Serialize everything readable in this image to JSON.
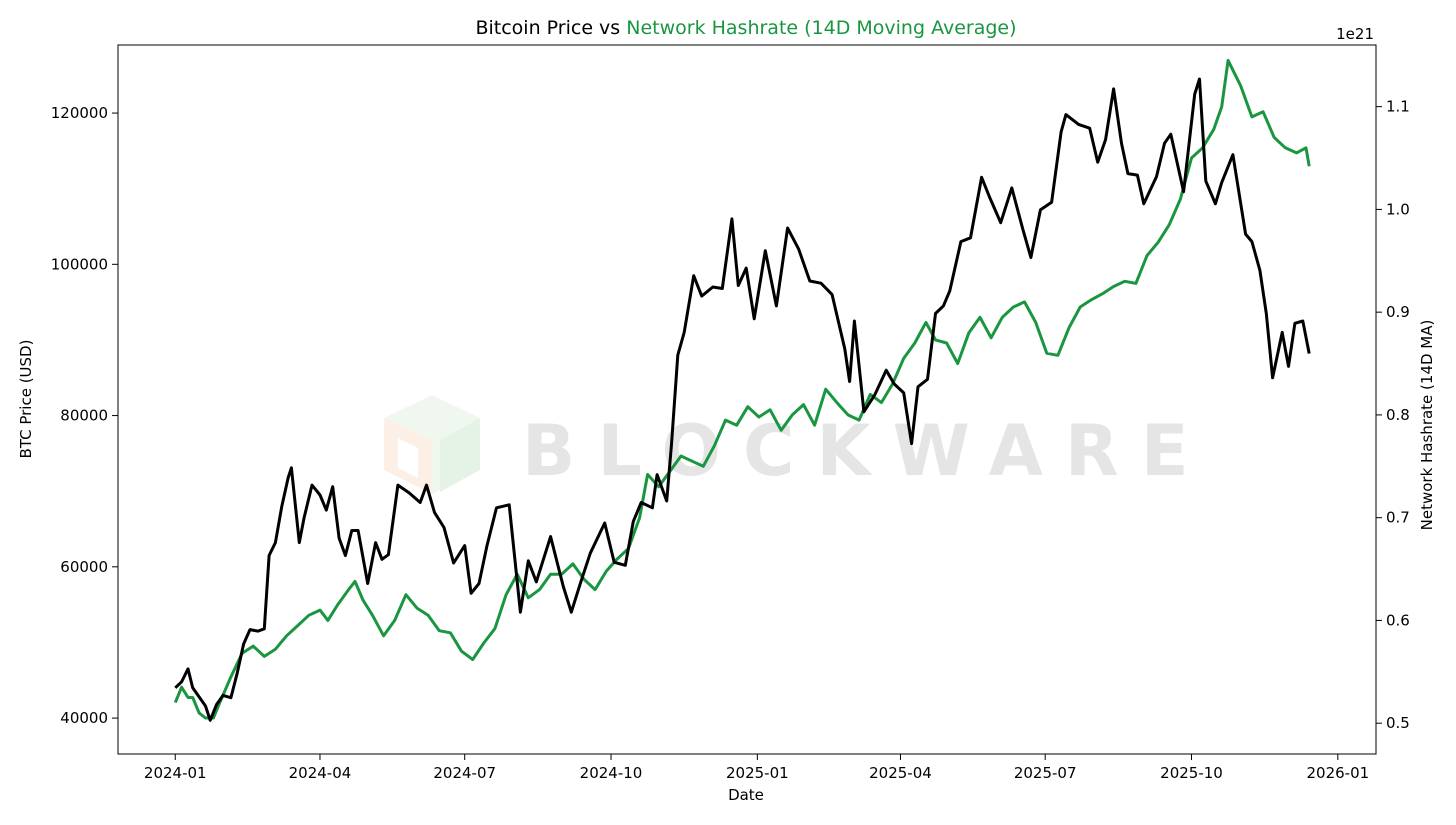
{
  "chart_data": {
    "type": "line",
    "title_part1": "Bitcoin Price vs ",
    "title_part2": "Network Hashrate (14D Moving Average)",
    "xlabel": "Date",
    "ylabel_left": "BTC Price (USD)",
    "ylabel_right": "Network Hashrate (14D MA)",
    "right_axis_offset_label": "1e21",
    "watermark": "BLOCKWARE",
    "colors": {
      "price": "#000000",
      "hashrate": "#1a9641",
      "title_accent": "#1a9641"
    },
    "xlim": [
      "2023-11-26",
      "2026-01-25"
    ],
    "ylim_left": [
      35250,
      129000
    ],
    "ylim_right": [
      0.47,
      1.16
    ],
    "x_ticks": [
      "2024-01",
      "2024-04",
      "2024-07",
      "2024-10",
      "2025-01",
      "2025-04",
      "2025-07",
      "2025-10",
      "2026-01"
    ],
    "y_ticks_left": [
      40000,
      60000,
      80000,
      100000,
      120000
    ],
    "y_ticks_right": [
      0.5,
      0.6,
      0.7,
      0.8,
      0.9,
      1.0,
      1.1
    ],
    "grid": false,
    "series": [
      {
        "axis": "left",
        "points": [
          [
            "2024-01-01",
            44000
          ],
          [
            "2024-01-05",
            44800
          ],
          [
            "2024-01-09",
            46500
          ],
          [
            "2024-01-12",
            44000
          ],
          [
            "2024-01-16",
            42800
          ],
          [
            "2024-01-20",
            41600
          ],
          [
            "2024-01-23",
            39700
          ],
          [
            "2024-01-27",
            41800
          ],
          [
            "2024-01-31",
            43000
          ],
          [
            "2024-02-05",
            42700
          ],
          [
            "2024-02-09",
            46000
          ],
          [
            "2024-02-13",
            49800
          ],
          [
            "2024-02-17",
            51700
          ],
          [
            "2024-02-22",
            51500
          ],
          [
            "2024-02-26",
            51800
          ],
          [
            "2024-02-29",
            61500
          ],
          [
            "2024-03-04",
            63200
          ],
          [
            "2024-03-08",
            68000
          ],
          [
            "2024-03-12",
            71800
          ],
          [
            "2024-03-14",
            73100
          ],
          [
            "2024-03-19",
            63200
          ],
          [
            "2024-03-22",
            66500
          ],
          [
            "2024-03-27",
            70800
          ],
          [
            "2024-04-01",
            69500
          ],
          [
            "2024-04-05",
            67500
          ],
          [
            "2024-04-09",
            70600
          ],
          [
            "2024-04-13",
            63800
          ],
          [
            "2024-04-17",
            61500
          ],
          [
            "2024-04-21",
            64800
          ],
          [
            "2024-04-25",
            64800
          ],
          [
            "2024-05-01",
            57800
          ],
          [
            "2024-05-06",
            63200
          ],
          [
            "2024-05-10",
            61000
          ],
          [
            "2024-05-14",
            61600
          ],
          [
            "2024-05-20",
            70800
          ],
          [
            "2024-05-27",
            69800
          ],
          [
            "2024-06-03",
            68500
          ],
          [
            "2024-06-07",
            70800
          ],
          [
            "2024-06-12",
            67200
          ],
          [
            "2024-06-18",
            65200
          ],
          [
            "2024-06-24",
            60500
          ],
          [
            "2024-07-01",
            62800
          ],
          [
            "2024-07-05",
            56500
          ],
          [
            "2024-07-10",
            57800
          ],
          [
            "2024-07-15",
            62800
          ],
          [
            "2024-07-21",
            67800
          ],
          [
            "2024-07-29",
            68200
          ],
          [
            "2024-08-05",
            54000
          ],
          [
            "2024-08-10",
            60800
          ],
          [
            "2024-08-15",
            58000
          ],
          [
            "2024-08-24",
            64000
          ],
          [
            "2024-09-01",
            57400
          ],
          [
            "2024-09-06",
            54000
          ],
          [
            "2024-09-12",
            58000
          ],
          [
            "2024-09-18",
            61800
          ],
          [
            "2024-09-27",
            65800
          ],
          [
            "2024-10-03",
            60600
          ],
          [
            "2024-10-10",
            60200
          ],
          [
            "2024-10-15",
            66000
          ],
          [
            "2024-10-20",
            68500
          ],
          [
            "2024-10-27",
            67800
          ],
          [
            "2024-10-30",
            72200
          ],
          [
            "2024-11-05",
            68700
          ],
          [
            "2024-11-08",
            76200
          ],
          [
            "2024-11-12",
            88000
          ],
          [
            "2024-11-16",
            91000
          ],
          [
            "2024-11-22",
            98500
          ],
          [
            "2024-11-27",
            95800
          ],
          [
            "2024-12-04",
            97000
          ],
          [
            "2024-12-10",
            96800
          ],
          [
            "2024-12-16",
            106000
          ],
          [
            "2024-12-20",
            97200
          ],
          [
            "2024-12-25",
            99500
          ],
          [
            "2024-12-30",
            92800
          ],
          [
            "2025-01-06",
            101800
          ],
          [
            "2025-01-13",
            94500
          ],
          [
            "2025-01-20",
            104800
          ],
          [
            "2025-01-27",
            102000
          ],
          [
            "2025-02-03",
            97800
          ],
          [
            "2025-02-10",
            97500
          ],
          [
            "2025-02-17",
            96000
          ],
          [
            "2025-02-25",
            88800
          ],
          [
            "2025-02-28",
            84500
          ],
          [
            "2025-03-03",
            92500
          ],
          [
            "2025-03-09",
            80500
          ],
          [
            "2025-03-16",
            82800
          ],
          [
            "2025-03-23",
            86000
          ],
          [
            "2025-03-28",
            84200
          ],
          [
            "2025-04-03",
            83000
          ],
          [
            "2025-04-08",
            76300
          ],
          [
            "2025-04-12",
            83800
          ],
          [
            "2025-04-18",
            84800
          ],
          [
            "2025-04-23",
            93500
          ],
          [
            "2025-04-28",
            94500
          ],
          [
            "2025-05-02",
            96500
          ],
          [
            "2025-05-09",
            103000
          ],
          [
            "2025-05-15",
            103500
          ],
          [
            "2025-05-22",
            111500
          ],
          [
            "2025-05-27",
            108900
          ],
          [
            "2025-06-03",
            105500
          ],
          [
            "2025-06-10",
            110100
          ],
          [
            "2025-06-17",
            104600
          ],
          [
            "2025-06-22",
            100900
          ],
          [
            "2025-06-28",
            107200
          ],
          [
            "2025-07-05",
            108200
          ],
          [
            "2025-07-11",
            117500
          ],
          [
            "2025-07-14",
            119800
          ],
          [
            "2025-07-22",
            118500
          ],
          [
            "2025-07-29",
            118000
          ],
          [
            "2025-08-03",
            113500
          ],
          [
            "2025-08-08",
            116500
          ],
          [
            "2025-08-13",
            123200
          ],
          [
            "2025-08-18",
            116000
          ],
          [
            "2025-08-22",
            112000
          ],
          [
            "2025-08-28",
            111800
          ],
          [
            "2025-09-01",
            108000
          ],
          [
            "2025-09-09",
            111600
          ],
          [
            "2025-09-14",
            116000
          ],
          [
            "2025-09-18",
            117200
          ],
          [
            "2025-09-26",
            109600
          ],
          [
            "2025-10-03",
            122500
          ],
          [
            "2025-10-06",
            124500
          ],
          [
            "2025-10-10",
            111000
          ],
          [
            "2025-10-16",
            108000
          ],
          [
            "2025-10-20",
            110800
          ],
          [
            "2025-10-27",
            114500
          ],
          [
            "2025-11-04",
            104000
          ],
          [
            "2025-11-08",
            103000
          ],
          [
            "2025-11-13",
            99200
          ],
          [
            "2025-11-17",
            93500
          ],
          [
            "2025-11-21",
            85000
          ],
          [
            "2025-11-27",
            91000
          ],
          [
            "2025-12-01",
            86500
          ],
          [
            "2025-12-05",
            92200
          ],
          [
            "2025-12-10",
            92500
          ],
          [
            "2025-12-14",
            88200
          ]
        ]
      },
      {
        "axis": "right",
        "points": [
          [
            "2024-01-01",
            0.52
          ],
          [
            "2024-01-05",
            0.535
          ],
          [
            "2024-01-09",
            0.525
          ],
          [
            "2024-01-12",
            0.525
          ],
          [
            "2024-01-16",
            0.51
          ],
          [
            "2024-01-20",
            0.505
          ],
          [
            "2024-01-25",
            0.505
          ],
          [
            "2024-01-29",
            0.52
          ],
          [
            "2024-02-05",
            0.545
          ],
          [
            "2024-02-12",
            0.568
          ],
          [
            "2024-02-19",
            0.575
          ],
          [
            "2024-02-26",
            0.565
          ],
          [
            "2024-03-04",
            0.572
          ],
          [
            "2024-03-11",
            0.585
          ],
          [
            "2024-03-18",
            0.595
          ],
          [
            "2024-03-25",
            0.605
          ],
          [
            "2024-04-01",
            0.61
          ],
          [
            "2024-04-06",
            0.6
          ],
          [
            "2024-04-12",
            0.615
          ],
          [
            "2024-04-19",
            0.63
          ],
          [
            "2024-04-23",
            0.638
          ],
          [
            "2024-04-28",
            0.62
          ],
          [
            "2024-05-04",
            0.605
          ],
          [
            "2024-05-11",
            0.585
          ],
          [
            "2024-05-18",
            0.6
          ],
          [
            "2024-05-25",
            0.625
          ],
          [
            "2024-06-01",
            0.612
          ],
          [
            "2024-06-08",
            0.605
          ],
          [
            "2024-06-15",
            0.59
          ],
          [
            "2024-06-22",
            0.588
          ],
          [
            "2024-06-29",
            0.57
          ],
          [
            "2024-07-06",
            0.562
          ],
          [
            "2024-07-13",
            0.578
          ],
          [
            "2024-07-20",
            0.592
          ],
          [
            "2024-07-27",
            0.625
          ],
          [
            "2024-08-03",
            0.645
          ],
          [
            "2024-08-10",
            0.622
          ],
          [
            "2024-08-17",
            0.63
          ],
          [
            "2024-08-24",
            0.645
          ],
          [
            "2024-08-31",
            0.645
          ],
          [
            "2024-09-07",
            0.655
          ],
          [
            "2024-09-14",
            0.64
          ],
          [
            "2024-09-21",
            0.63
          ],
          [
            "2024-09-28",
            0.648
          ],
          [
            "2024-10-05",
            0.66
          ],
          [
            "2024-10-12",
            0.67
          ],
          [
            "2024-10-19",
            0.7
          ],
          [
            "2024-10-24",
            0.742
          ],
          [
            "2024-10-31",
            0.73
          ],
          [
            "2024-11-07",
            0.745
          ],
          [
            "2024-11-14",
            0.76
          ],
          [
            "2024-11-21",
            0.755
          ],
          [
            "2024-11-28",
            0.75
          ],
          [
            "2024-12-05",
            0.77
          ],
          [
            "2024-12-12",
            0.795
          ],
          [
            "2024-12-19",
            0.79
          ],
          [
            "2024-12-26",
            0.808
          ],
          [
            "2025-01-02",
            0.798
          ],
          [
            "2025-01-09",
            0.805
          ],
          [
            "2025-01-16",
            0.785
          ],
          [
            "2025-01-23",
            0.8
          ],
          [
            "2025-01-30",
            0.81
          ],
          [
            "2025-02-06",
            0.79
          ],
          [
            "2025-02-13",
            0.825
          ],
          [
            "2025-02-20",
            0.812
          ],
          [
            "2025-02-27",
            0.8
          ],
          [
            "2025-03-06",
            0.795
          ],
          [
            "2025-03-13",
            0.82
          ],
          [
            "2025-03-20",
            0.812
          ],
          [
            "2025-03-27",
            0.83
          ],
          [
            "2025-04-03",
            0.855
          ],
          [
            "2025-04-10",
            0.87
          ],
          [
            "2025-04-17",
            0.89
          ],
          [
            "2025-04-23",
            0.873
          ],
          [
            "2025-04-30",
            0.87
          ],
          [
            "2025-05-07",
            0.85
          ],
          [
            "2025-05-14",
            0.88
          ],
          [
            "2025-05-21",
            0.895
          ],
          [
            "2025-05-28",
            0.875
          ],
          [
            "2025-06-04",
            0.895
          ],
          [
            "2025-06-11",
            0.905
          ],
          [
            "2025-06-18",
            0.91
          ],
          [
            "2025-06-25",
            0.89
          ],
          [
            "2025-07-02",
            0.86
          ],
          [
            "2025-07-09",
            0.858
          ],
          [
            "2025-07-16",
            0.885
          ],
          [
            "2025-07-23",
            0.905
          ],
          [
            "2025-07-30",
            0.912
          ],
          [
            "2025-08-06",
            0.918
          ],
          [
            "2025-08-13",
            0.925
          ],
          [
            "2025-08-20",
            0.93
          ],
          [
            "2025-08-27",
            0.928
          ],
          [
            "2025-09-03",
            0.955
          ],
          [
            "2025-09-10",
            0.968
          ],
          [
            "2025-09-17",
            0.985
          ],
          [
            "2025-09-24",
            1.01
          ],
          [
            "2025-10-01",
            1.05
          ],
          [
            "2025-10-08",
            1.06
          ],
          [
            "2025-10-15",
            1.078
          ],
          [
            "2025-10-20",
            1.1
          ],
          [
            "2025-10-24",
            1.145
          ],
          [
            "2025-11-01",
            1.12
          ],
          [
            "2025-11-08",
            1.09
          ],
          [
            "2025-11-15",
            1.095
          ],
          [
            "2025-11-22",
            1.07
          ],
          [
            "2025-11-29",
            1.06
          ],
          [
            "2025-12-06",
            1.055
          ],
          [
            "2025-12-12",
            1.06
          ],
          [
            "2025-12-14",
            1.042
          ]
        ]
      }
    ]
  }
}
